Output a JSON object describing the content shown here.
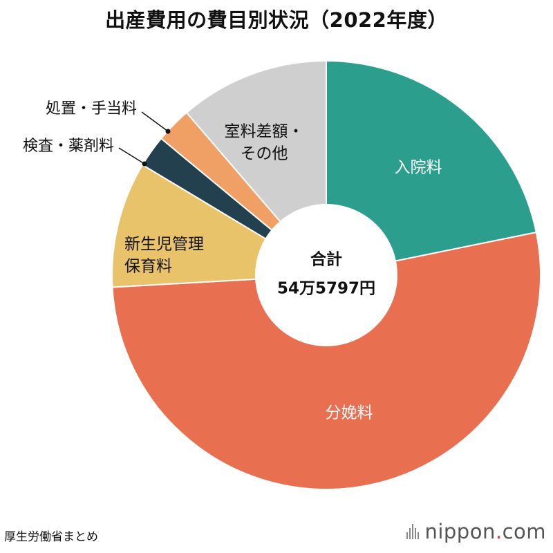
{
  "title": "出産費用の費目別状況（2022年度）",
  "center_label": {
    "line1": "合計",
    "line2": "54万5797円"
  },
  "source": "厚生労働省まとめ",
  "brand": {
    "name": "nippon",
    "dot": ".",
    "tld": "com"
  },
  "chart_data": {
    "type": "pie",
    "style": "donut",
    "title": "出産費用の費目別状況（2022年度）",
    "start": "12 o'clock",
    "direction": "clockwise",
    "slices": [
      {
        "label": "入院料",
        "value": 21.8,
        "color": "#2b9e8e"
      },
      {
        "label": "分娩料",
        "value": 52.3,
        "color": "#e86f50"
      },
      {
        "label": "新生児管理保育料",
        "value": 9.5,
        "color": "#e8c36a"
      },
      {
        "label": "検査・薬剤料",
        "value": 2.4,
        "color": "#23404f"
      },
      {
        "label": "処置・手当料",
        "value": 2.7,
        "color": "#f0a064"
      },
      {
        "label": "室料差額・その他",
        "value": 11.3,
        "color": "#cfcfcf"
      }
    ],
    "slice_labels": {
      "入院料": [
        "入院料"
      ],
      "分娩料": [
        "分娩料"
      ],
      "新生児管理保育料": [
        "新生児管理",
        "保育料"
      ],
      "室料差額・その他": [
        "室料差額・",
        "その他"
      ]
    },
    "callout_labels": {
      "処置・手当料": "処置・手当料",
      "検査・薬剤料": "検査・薬剤料"
    },
    "total_label": "合計 54万5797円"
  }
}
